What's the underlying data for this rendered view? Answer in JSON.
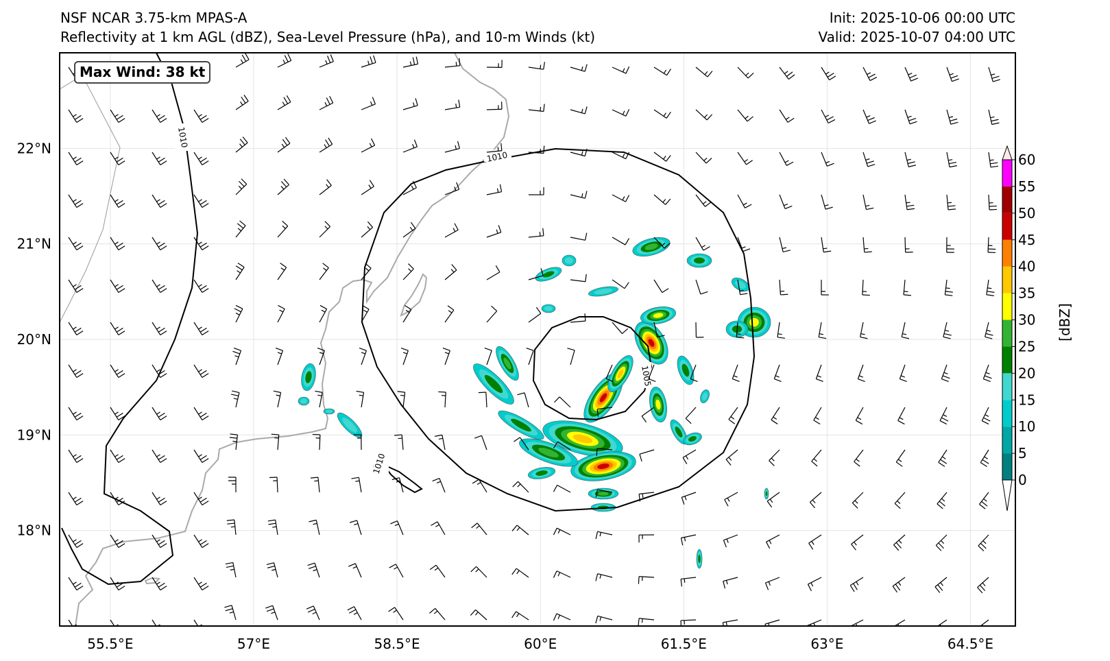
{
  "header": {
    "left_line1": "NSF NCAR 3.75-km MPAS-A",
    "left_line2": "Reflectivity at 1 km AGL (dBZ), Sea-Level Pressure (hPa), and 10-m Winds (kt)",
    "right_line1": "Init: 2025-10-06 00:00 UTC",
    "right_line2": "Valid: 2025-10-07 04:00 UTC"
  },
  "annotation": {
    "max_wind": "Max Wind: 38 kt"
  },
  "map": {
    "lon_range": [
      54.97,
      64.97
    ],
    "lat_range": [
      17.0,
      23.0
    ],
    "lon_ticks": [
      55.5,
      57,
      58.5,
      60,
      61.5,
      63,
      64.5
    ],
    "lon_tick_labels": [
      "55.5°E",
      "57°E",
      "58.5°E",
      "60°E",
      "61.5°E",
      "63°E",
      "64.5°E"
    ],
    "lat_ticks": [
      18,
      19,
      20,
      21,
      22
    ],
    "lat_tick_labels": [
      "18°N",
      "19°N",
      "20°N",
      "21°N",
      "22°N"
    ],
    "gridlines": true,
    "coastline_color": "#aaaaaa",
    "isobar_labels": [
      "1010",
      "1010",
      "1010",
      "1005"
    ]
  },
  "colorbar": {
    "label": "[dBZ]",
    "ticks": [
      0,
      5,
      10,
      15,
      20,
      25,
      30,
      35,
      40,
      45,
      50,
      55,
      60
    ],
    "tick_labels": [
      "0",
      "5",
      "10",
      "15",
      "20",
      "25",
      "30",
      "35",
      "40",
      "45",
      "50",
      "55",
      "60"
    ],
    "colors": [
      "#00807f",
      "#00a7a7",
      "#00cccc",
      "#40d8d0",
      "#008000",
      "#32b432",
      "#ffff00",
      "#ffc800",
      "#ff8000",
      "#cc0000",
      "#a00000",
      "#ff00ff",
      "#fde9e4"
    ],
    "extend": "both"
  },
  "icons": {
    "wind": "wind-barb-icon"
  }
}
